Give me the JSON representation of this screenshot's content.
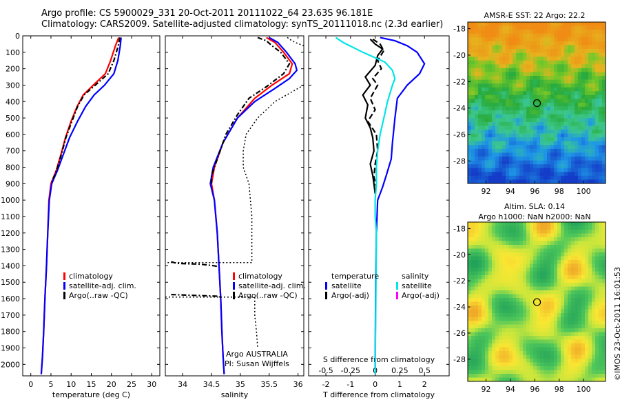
{
  "header": {
    "title_line1": "Argo profile: CS 5900029_331 20-Oct-2011 20111022_64 23.63S 96.181E",
    "title_line2": "Climatology: CARS2009. Satellite-adjusted climatology: synTS_20111018.nc (2.3d earlier)"
  },
  "colors": {
    "climatology": "#ff0000",
    "satellite": "#0000ff",
    "argo": "#000000",
    "salinity_satellite": "#00e5e5",
    "salinity_argo": "#ff00ff"
  },
  "depth_axis": {
    "ticks": [
      0,
      100,
      200,
      300,
      400,
      500,
      600,
      700,
      800,
      900,
      1000,
      1100,
      1200,
      1300,
      1400,
      1500,
      1600,
      1700,
      1800,
      1900,
      2000
    ],
    "ylim": [
      0,
      2070
    ]
  },
  "chart_data": [
    {
      "id": "temperature",
      "type": "line",
      "xlabel": "temperature (deg C)",
      "xlim": [
        -2,
        32
      ],
      "xticks": [
        0,
        5,
        10,
        15,
        20,
        25,
        30
      ],
      "legend": [
        "climatology",
        "satellite-adj. clim.",
        "Argo(..raw -QC)"
      ],
      "series": [
        {
          "name": "climatology",
          "color": "#ff0000",
          "style": "solid",
          "points": [
            [
              21.8,
              10
            ],
            [
              21.0,
              60
            ],
            [
              19.8,
              150
            ],
            [
              18.5,
              230
            ],
            [
              15.5,
              300
            ],
            [
              13.0,
              360
            ],
            [
              11.5,
              430
            ],
            [
              10.0,
              520
            ],
            [
              8.6,
              620
            ],
            [
              7.5,
              720
            ],
            [
              6.3,
              820
            ],
            [
              5.0,
              900
            ],
            [
              4.5,
              1000
            ],
            [
              4.2,
              1200
            ],
            [
              3.9,
              1400
            ],
            [
              3.5,
              1600
            ],
            [
              3.2,
              1800
            ],
            [
              2.9,
              1950
            ],
            [
              2.6,
              2060
            ]
          ]
        },
        {
          "name": "satellite-adj. clim.",
          "color": "#0000ff",
          "style": "solid",
          "points": [
            [
              22.4,
              10
            ],
            [
              22.2,
              60
            ],
            [
              21.6,
              150
            ],
            [
              20.6,
              230
            ],
            [
              18.3,
              300
            ],
            [
              15.7,
              360
            ],
            [
              13.6,
              430
            ],
            [
              11.6,
              520
            ],
            [
              9.6,
              620
            ],
            [
              8.1,
              720
            ],
            [
              6.6,
              820
            ],
            [
              5.2,
              900
            ],
            [
              4.6,
              1000
            ],
            [
              4.2,
              1200
            ],
            [
              3.9,
              1400
            ],
            [
              3.5,
              1600
            ],
            [
              3.2,
              1800
            ],
            [
              2.9,
              1950
            ],
            [
              2.6,
              2060
            ]
          ]
        },
        {
          "name": "Argo(..raw -QC)",
          "color": "#000000",
          "style": "dashdot",
          "points": [
            [
              22.1,
              10
            ],
            [
              21.7,
              60
            ],
            [
              20.6,
              150
            ],
            [
              19.2,
              230
            ],
            [
              16.0,
              300
            ],
            [
              13.2,
              360
            ],
            [
              11.6,
              430
            ],
            [
              10.2,
              520
            ],
            [
              8.7,
              620
            ],
            [
              7.6,
              720
            ],
            [
              6.4,
              820
            ],
            [
              5.0,
              900
            ]
          ]
        }
      ]
    },
    {
      "id": "salinity",
      "type": "line",
      "xlabel": "salinity",
      "xlim": [
        33.7,
        36.1
      ],
      "xticks": [
        34,
        34.5,
        35,
        35.5,
        36
      ],
      "legend": [
        "climatology",
        "satellite-adj. clim.",
        "Argo(..raw -QC)"
      ],
      "annotation_line1": "Argo AUSTRALIA",
      "annotation_line2": "PI: Susan Wijffels",
      "series": [
        {
          "name": "climatology",
          "color": "#ff0000",
          "style": "solid",
          "points": [
            [
              35.45,
              10
            ],
            [
              35.6,
              40
            ],
            [
              35.75,
              100
            ],
            [
              35.9,
              170
            ],
            [
              35.85,
              230
            ],
            [
              35.55,
              300
            ],
            [
              35.25,
              380
            ],
            [
              34.95,
              500
            ],
            [
              34.7,
              650
            ],
            [
              34.55,
              800
            ],
            [
              34.5,
              900
            ],
            [
              34.55,
              1000
            ],
            [
              34.6,
              1200
            ],
            [
              34.63,
              1400
            ],
            [
              34.66,
              1600
            ],
            [
              34.68,
              1800
            ],
            [
              34.7,
              1950
            ],
            [
              34.72,
              2060
            ]
          ]
        },
        {
          "name": "satellite-adj. clim.",
          "color": "#0000ff",
          "style": "solid",
          "points": [
            [
              35.5,
              10
            ],
            [
              35.65,
              40
            ],
            [
              35.8,
              100
            ],
            [
              35.95,
              170
            ],
            [
              35.98,
              210
            ],
            [
              35.85,
              260
            ],
            [
              35.6,
              320
            ],
            [
              35.25,
              400
            ],
            [
              34.95,
              500
            ],
            [
              34.7,
              650
            ],
            [
              34.53,
              800
            ],
            [
              34.48,
              900
            ],
            [
              34.55,
              1000
            ],
            [
              34.6,
              1200
            ],
            [
              34.63,
              1400
            ],
            [
              34.66,
              1600
            ],
            [
              34.68,
              1800
            ],
            [
              34.7,
              1950
            ],
            [
              34.72,
              2060
            ]
          ]
        },
        {
          "name": "Argo(..raw -QC)",
          "color": "#000000",
          "style": "dashdot",
          "points": [
            [
              35.3,
              10
            ],
            [
              35.45,
              30
            ],
            [
              35.55,
              60
            ],
            [
              35.7,
              100
            ],
            [
              35.85,
              170
            ],
            [
              35.75,
              230
            ],
            [
              35.45,
              310
            ],
            [
              35.15,
              380
            ],
            [
              34.95,
              480
            ],
            [
              34.75,
              600
            ],
            [
              34.6,
              750
            ],
            [
              34.5,
              850
            ],
            [
              34.5,
              900
            ]
          ]
        },
        {
          "name": "QC-flagged raw",
          "color": "#000000",
          "style": "dashdot",
          "points": [
            [
              33.8,
              1375
            ],
            [
              33.9,
              1385
            ],
            [
              34.3,
              1390
            ],
            [
              34.55,
              1400
            ],
            [
              34.62,
              1405
            ]
          ]
        },
        {
          "name": "QC-flagged raw 2",
          "color": "#000000",
          "style": "dashdot",
          "points": [
            [
              33.8,
              1575
            ],
            [
              34.2,
              1580
            ],
            [
              34.6,
              1585
            ],
            [
              34.66,
              1590
            ]
          ]
        },
        {
          "name": "envelope lower",
          "color": "#000000",
          "style": "dotted",
          "points": [
            [
              36.1,
              300
            ],
            [
              35.85,
              350
            ],
            [
              35.6,
              400
            ],
            [
              35.3,
              500
            ],
            [
              35.1,
              600
            ],
            [
              35.05,
              700
            ],
            [
              35.05,
              800
            ],
            [
              35.15,
              900
            ],
            [
              35.2,
              1100
            ],
            [
              35.2,
              1250
            ],
            [
              35.2,
              1380
            ],
            [
              34.6,
              1380
            ],
            [
              33.7,
              1380
            ]
          ]
        },
        {
          "name": "envelope upper",
          "color": "#000000",
          "style": "dotted",
          "points": [
            [
              36.1,
              60
            ],
            [
              35.95,
              40
            ],
            [
              35.85,
              20
            ],
            [
              35.8,
              5
            ]
          ]
        },
        {
          "name": "envelope deep",
          "color": "#000000",
          "style": "dotted",
          "points": [
            [
              33.7,
              1590
            ],
            [
              34.6,
              1590
            ],
            [
              35.25,
              1590
            ],
            [
              35.25,
              1700
            ],
            [
              35.28,
              1800
            ],
            [
              35.3,
              1900
            ]
          ]
        }
      ]
    },
    {
      "id": "difference",
      "type": "line",
      "xlabel": "T difference from climatology",
      "xlabel_top": "S difference from climatology",
      "xlim": [
        -2.7,
        3.0
      ],
      "xticks": [
        -2,
        -1,
        0,
        1,
        2
      ],
      "xticks_top": [
        "-0.5",
        "-0.25",
        "0",
        "0.25",
        "0.5"
      ],
      "xticks_top_pos": [
        -2,
        -1,
        0,
        1,
        2
      ],
      "legend_group1": "temperature",
      "legend_group2": "salinity",
      "legend_t": [
        "satellite",
        "Argo(-adj)"
      ],
      "legend_s": [
        "satellite",
        "Argo(-adj)"
      ],
      "series": [
        {
          "name": "T satellite",
          "color": "#0000ff",
          "style": "solid",
          "points": [
            [
              0.2,
              10
            ],
            [
              0.8,
              30
            ],
            [
              1.3,
              60
            ],
            [
              1.7,
              100
            ],
            [
              2.0,
              170
            ],
            [
              1.8,
              230
            ],
            [
              1.3,
              300
            ],
            [
              0.9,
              380
            ],
            [
              0.8,
              500
            ],
            [
              0.7,
              650
            ],
            [
              0.65,
              750
            ],
            [
              0.45,
              850
            ],
            [
              0.3,
              920
            ],
            [
              0.1,
              1000
            ],
            [
              0.05,
              1200
            ],
            [
              0.02,
              1500
            ],
            [
              0.0,
              2060
            ]
          ]
        },
        {
          "name": "T Argo",
          "color": "#000000",
          "style": "solid",
          "points": [
            [
              -0.2,
              20
            ],
            [
              0.0,
              50
            ],
            [
              0.3,
              80
            ],
            [
              0.1,
              120
            ],
            [
              0.0,
              180
            ],
            [
              -0.4,
              250
            ],
            [
              -0.2,
              300
            ],
            [
              -0.5,
              360
            ],
            [
              -0.3,
              420
            ],
            [
              -0.4,
              500
            ],
            [
              -0.2,
              560
            ],
            [
              -0.1,
              620
            ],
            [
              -0.05,
              700
            ],
            [
              -0.2,
              780
            ],
            [
              -0.1,
              850
            ],
            [
              -0.05,
              900
            ],
            [
              0.0,
              960
            ]
          ]
        },
        {
          "name": "S Argo",
          "color": "#000000",
          "style": "dashed",
          "points": [
            [
              -0.1,
              20
            ],
            [
              0.2,
              50
            ],
            [
              0.35,
              90
            ],
            [
              0.1,
              150
            ],
            [
              0.25,
              200
            ],
            [
              -0.1,
              260
            ],
            [
              0.1,
              300
            ],
            [
              -0.2,
              380
            ],
            [
              0.0,
              450
            ],
            [
              -0.3,
              520
            ],
            [
              0.05,
              600
            ],
            [
              0.1,
              700
            ],
            [
              0.0,
              780
            ],
            [
              -0.05,
              860
            ],
            [
              0.05,
              920
            ]
          ]
        },
        {
          "name": "S satellite",
          "color": "#00e5e5",
          "style": "solid",
          "points": [
            [
              -1.6,
              10
            ],
            [
              -1.3,
              40
            ],
            [
              -0.9,
              70
            ],
            [
              -0.5,
              100
            ],
            [
              0.4,
              160
            ],
            [
              0.7,
              210
            ],
            [
              0.8,
              260
            ],
            [
              0.7,
              300
            ],
            [
              0.5,
              400
            ],
            [
              0.35,
              500
            ],
            [
              0.2,
              600
            ],
            [
              0.1,
              700
            ],
            [
              0.05,
              800
            ],
            [
              0.05,
              900
            ],
            [
              0.0,
              1000
            ],
            [
              0.0,
              1100
            ],
            [
              0.05,
              1200
            ],
            [
              0.0,
              2060
            ]
          ]
        }
      ]
    },
    {
      "id": "sst_map",
      "type": "heatmap",
      "title": "AMSR-E SST: 22 Argo: 22.2",
      "xticks": [
        "92",
        "94",
        "96",
        "98",
        "100"
      ],
      "yticks": [
        "-18",
        "-20",
        "-22",
        "-24",
        "-26",
        "-28"
      ],
      "lon_range": [
        90.5,
        101.8
      ],
      "lat_range": [
        -17.5,
        -29.7
      ],
      "marker": {
        "lon": 96.18,
        "lat": -23.63
      }
    },
    {
      "id": "sla_map",
      "type": "heatmap",
      "title_line1": "Altim. SLA: 0.14",
      "title_line2": "Argo h1000: NaN h2000: NaN",
      "xticks": [
        "92",
        "94",
        "96",
        "98",
        "100"
      ],
      "yticks": [
        "-18",
        "-20",
        "-22",
        "-24",
        "-26",
        "-28"
      ],
      "lon_range": [
        90.5,
        101.8
      ],
      "lat_range": [
        -17.5,
        -29.7
      ],
      "marker": {
        "lon": 96.18,
        "lat": -23.63
      }
    }
  ],
  "watermark": "©IMOS 23-Oct-2011 16:01:53"
}
